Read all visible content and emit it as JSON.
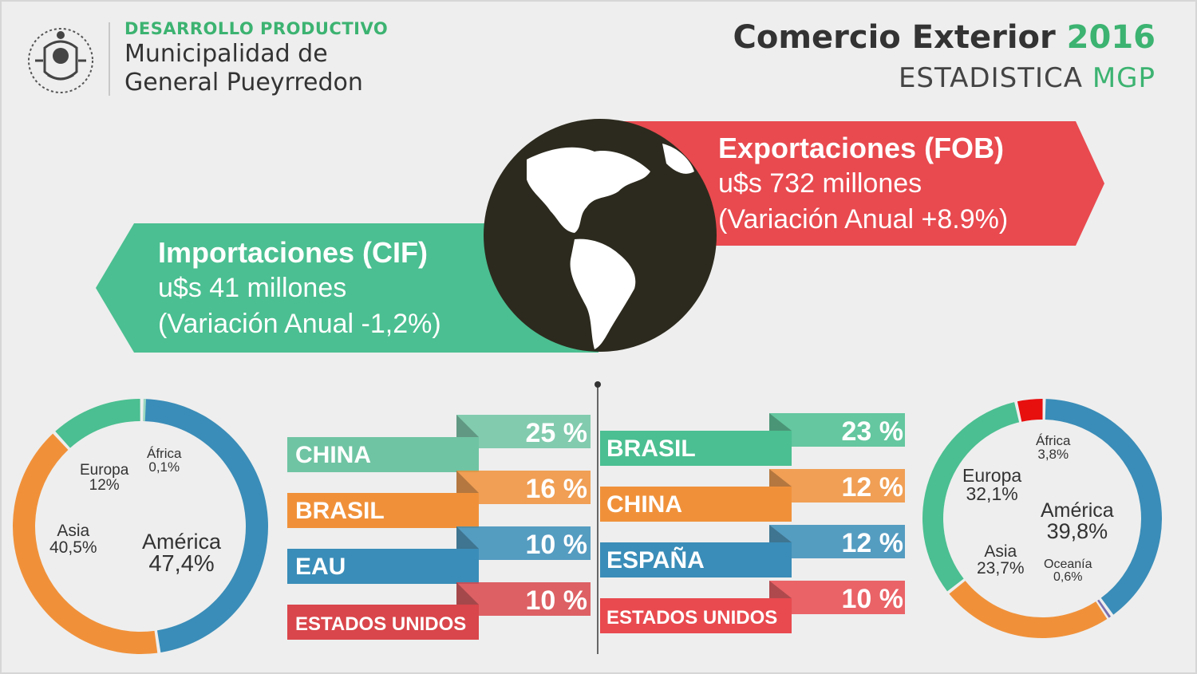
{
  "header": {
    "department": "DESARROLLO PRODUCTIVO",
    "org_line1": "Municipalidad de",
    "org_line2": "General Pueyrredon",
    "title": "Comercio Exterior",
    "year": "2016",
    "subtitle": "ESTADISTICA",
    "subtitle_accent": "MGP"
  },
  "colors": {
    "green": "#4bbf91",
    "red": "#e84a4f",
    "orange": "#f0913a",
    "blue": "#3a8db8",
    "dark": "#2c2a1e"
  },
  "exports": {
    "title": "Exportaciones (FOB)",
    "amount": "u$s 732 millones",
    "variation": "(Variación Anual +8.9%)"
  },
  "imports": {
    "title": "Importaciones (CIF)",
    "amount": "u$s 41 millones",
    "variation": "(Variación Anual -1,2%)"
  },
  "chart_data": [
    {
      "type": "pie",
      "categories": [
        "América",
        "Asia",
        "Europa",
        "África"
      ],
      "values": [
        47.4,
        40.5,
        12,
        0.1
      ],
      "labels": [
        "América\n47,4%",
        "Asia\n40,5%",
        "Europa\n12%",
        "África\n0,1%"
      ]
    },
    {
      "type": "bar",
      "categories": [
        "CHINA",
        "BRASIL",
        "EAU",
        "ESTADOS UNIDOS"
      ],
      "values": [
        25,
        16,
        10,
        10
      ],
      "labels": [
        "25 %",
        "16 %",
        "10 %",
        "10 %"
      ]
    },
    {
      "type": "bar",
      "categories": [
        "BRASIL",
        "CHINA",
        "ESPAÑA",
        "ESTADOS UNIDOS"
      ],
      "values": [
        23,
        12,
        12,
        10
      ],
      "labels": [
        "23 %",
        "12 %",
        "12 %",
        "10 %"
      ]
    },
    {
      "type": "pie",
      "categories": [
        "América",
        "Oceanía",
        "Asia",
        "Europa",
        "África"
      ],
      "values": [
        39.8,
        0.6,
        23.7,
        32.1,
        3.8
      ],
      "labels": [
        "América\n39,8%",
        "Oceanía\n0,6%",
        "Asia\n23,7%",
        "Europa\n32,1%",
        "África\n3,8%"
      ]
    }
  ]
}
